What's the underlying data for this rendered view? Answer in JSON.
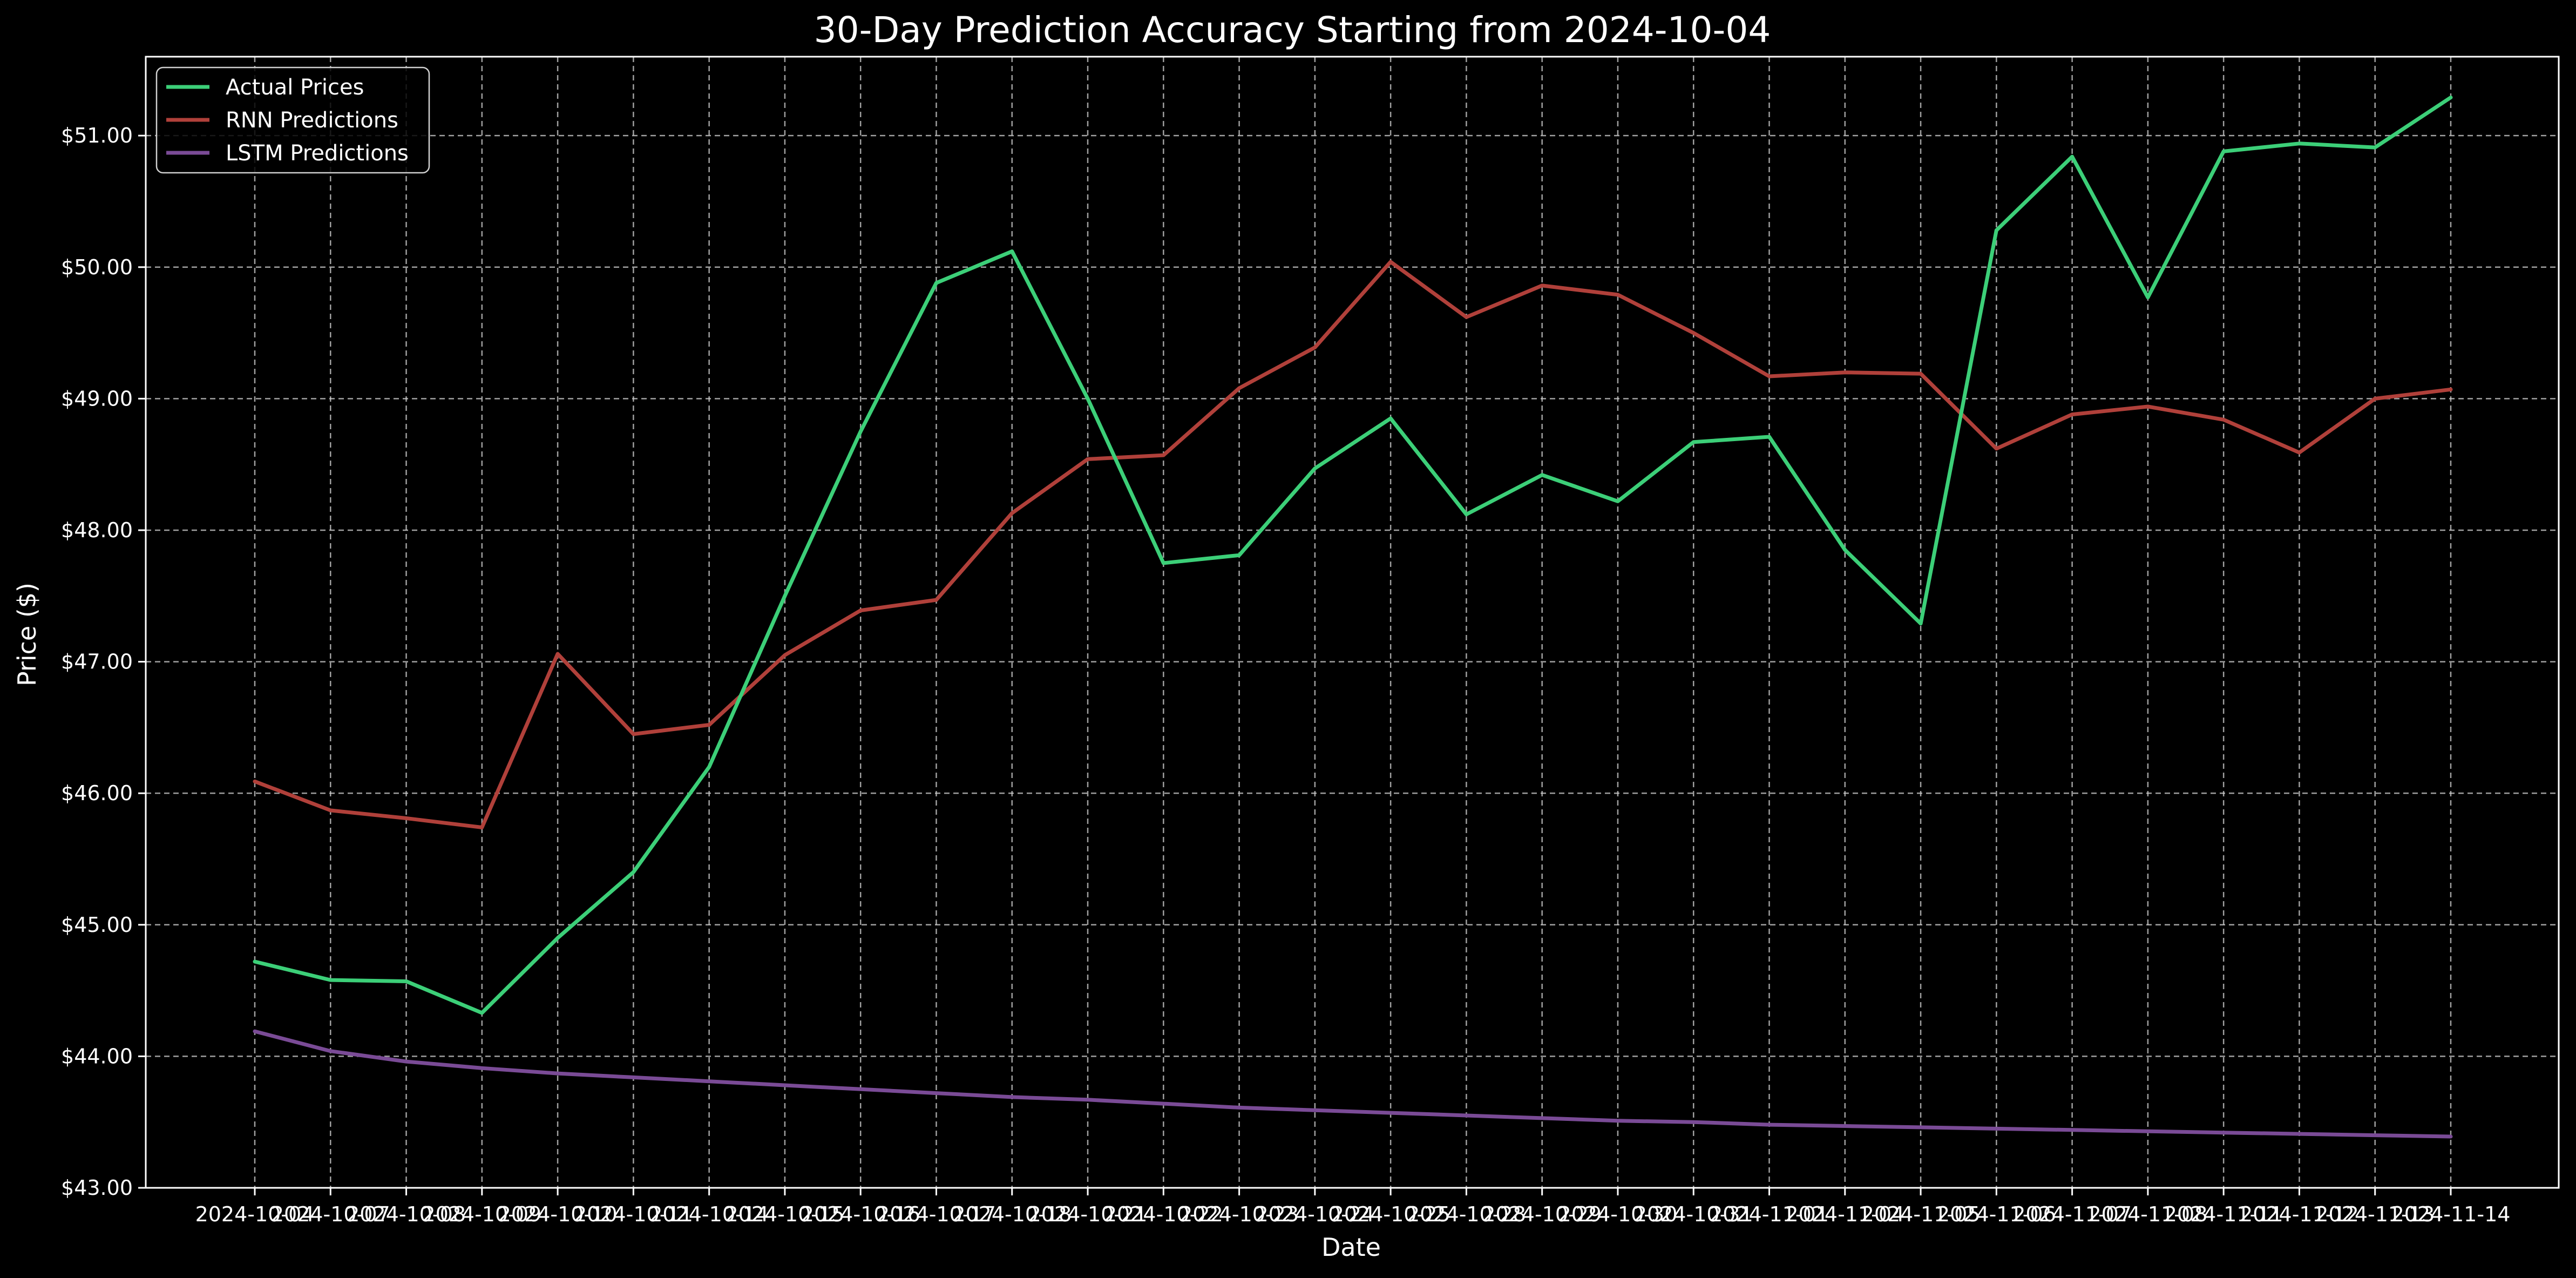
{
  "chart_data": {
    "type": "line",
    "title": "30-Day Prediction Accuracy Starting from 2024-10-04",
    "xlabel": "Date",
    "ylabel": "Price ($)",
    "grid": true,
    "legend_position": "top-left",
    "ylim": [
      43.0,
      51.6
    ],
    "yticks": [
      43,
      44,
      45,
      46,
      47,
      48,
      49,
      50,
      51
    ],
    "ytick_labels": [
      "$43.00",
      "$44.00",
      "$45.00",
      "$46.00",
      "$47.00",
      "$48.00",
      "$49.00",
      "$50.00",
      "$51.00"
    ],
    "x": [
      "2024-10-04",
      "2024-10-07",
      "2024-10-08",
      "2024-10-09",
      "2024-10-10",
      "2024-10-11",
      "2024-10-14",
      "2024-10-15",
      "2024-10-16",
      "2024-10-17",
      "2024-10-18",
      "2024-10-21",
      "2024-10-22",
      "2024-10-23",
      "2024-10-24",
      "2024-10-25",
      "2024-10-28",
      "2024-10-29",
      "2024-10-30",
      "2024-10-31",
      "2024-11-01",
      "2024-11-04",
      "2024-11-05",
      "2024-11-06",
      "2024-11-07",
      "2024-11-08",
      "2024-11-11",
      "2024-11-12",
      "2024-11-13",
      "2024-11-14"
    ],
    "series": [
      {
        "name": "Actual Prices",
        "color": "#3ccf78",
        "values": [
          44.72,
          44.58,
          44.57,
          44.33,
          44.9,
          45.4,
          46.2,
          47.5,
          48.75,
          49.88,
          50.12,
          49.0,
          47.75,
          47.81,
          48.47,
          48.85,
          48.12,
          48.42,
          48.22,
          48.67,
          48.71,
          47.85,
          47.29,
          50.28,
          50.84,
          49.77,
          50.88,
          50.94,
          50.91,
          51.29
        ]
      },
      {
        "name": "RNN Predictions",
        "color": "#b0403a",
        "values": [
          46.09,
          45.87,
          45.81,
          45.74,
          47.06,
          46.45,
          46.52,
          47.05,
          47.39,
          47.47,
          48.13,
          48.54,
          48.57,
          49.08,
          49.39,
          50.04,
          49.62,
          49.86,
          49.79,
          49.5,
          49.17,
          49.2,
          49.19,
          48.62,
          48.88,
          48.94,
          48.84,
          48.59,
          49.0,
          49.07
        ]
      },
      {
        "name": "LSTM Predictions",
        "color": "#7a4b96",
        "values": [
          44.19,
          44.04,
          43.96,
          43.91,
          43.87,
          43.84,
          43.81,
          43.78,
          43.75,
          43.72,
          43.69,
          43.67,
          43.64,
          43.61,
          43.59,
          43.57,
          43.55,
          43.53,
          43.51,
          43.5,
          43.48,
          43.47,
          43.46,
          43.45,
          43.44,
          43.43,
          43.42,
          43.41,
          43.4,
          43.39
        ]
      }
    ]
  }
}
